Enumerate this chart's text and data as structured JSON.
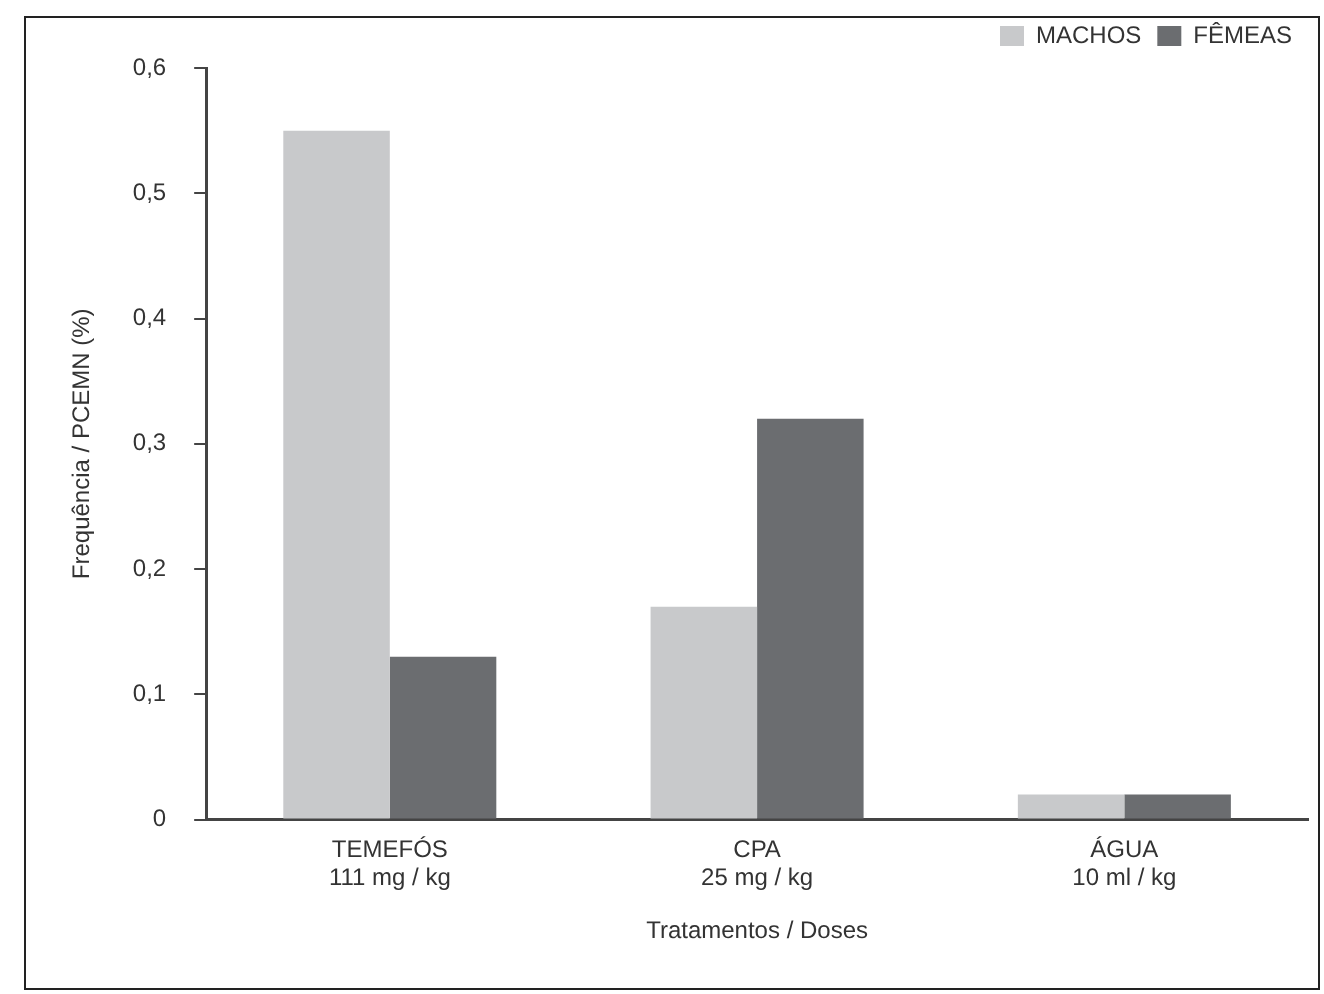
{
  "chart_data": {
    "type": "bar",
    "xlabel": "Tratamentos / Doses",
    "ylabel": "Frequência / PCEMN (%)",
    "categories": [
      "TEMEFÓS\n111 mg / kg",
      "CPA\n25 mg / kg",
      "ÁGUA\n10 ml / kg"
    ],
    "series": [
      {
        "name": "MACHOS",
        "color": "#c8c9cb",
        "values": [
          0.55,
          0.17,
          0.02
        ]
      },
      {
        "name": "FÊMEAS",
        "color": "#6b6d70",
        "values": [
          0.13,
          0.32,
          0.02
        ]
      }
    ],
    "ylim": [
      0,
      0.6
    ],
    "yticks": [
      0,
      {
        "value": 0.1,
        "label": "0,1"
      },
      {
        "value": 0.2,
        "label": "0,2"
      },
      {
        "value": 0.3,
        "label": "0,3"
      },
      {
        "value": 0.4,
        "label": "0,4"
      },
      {
        "value": 0.5,
        "label": "0,5"
      },
      {
        "value": 0.6,
        "label": "0,6"
      }
    ],
    "grid": false,
    "legend": "top right"
  }
}
